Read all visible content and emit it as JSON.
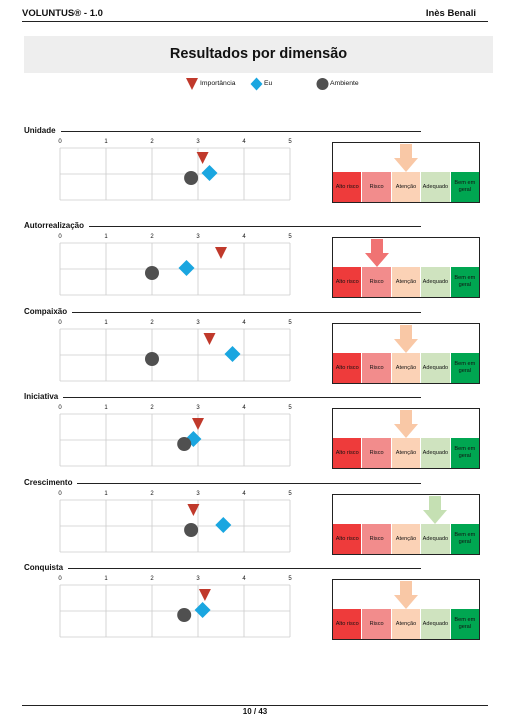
{
  "header": {
    "left": "VOLUNTUS® - 1.0",
    "right": "Inès Benali"
  },
  "title": "Resultados por dimensão",
  "legend": [
    {
      "label": "Importância",
      "marker": "triangle",
      "color": "#c0392b"
    },
    {
      "label": "Eu",
      "marker": "diamond",
      "color": "#1aa6e0"
    },
    {
      "label": "Ambiente",
      "marker": "circle",
      "color": "#505050"
    }
  ],
  "axis_ticks": [
    "0",
    "1",
    "2",
    "3",
    "4",
    "5"
  ],
  "risk_scale": {
    "bands": [
      "Alto risco",
      "Risco",
      "Atenção",
      "Adequado",
      "Bem em geral"
    ],
    "colors": [
      "#ee3b3b",
      "#f28c8c",
      "#fbd2b6",
      "#cfe3bf",
      "#00a651"
    ],
    "arrow_colors": [
      "#ee3b3b",
      "#f07373",
      "#f9c8a6",
      "#c5e0b3",
      "#00a651"
    ]
  },
  "chart_data": [
    {
      "type": "scatter",
      "title": "Unidade",
      "xlim": [
        0,
        5
      ],
      "series": [
        {
          "name": "Importância",
          "value": 3.1
        },
        {
          "name": "Eu",
          "value": 3.25
        },
        {
          "name": "Ambiente",
          "value": 2.85
        }
      ],
      "risk_level": "Atenção"
    },
    {
      "type": "scatter",
      "title": "Autorrealização",
      "xlim": [
        0,
        5
      ],
      "series": [
        {
          "name": "Importância",
          "value": 3.5
        },
        {
          "name": "Eu",
          "value": 2.75
        },
        {
          "name": "Ambiente",
          "value": 2.0
        }
      ],
      "risk_level": "Risco"
    },
    {
      "type": "scatter",
      "title": "Compaixão",
      "xlim": [
        0,
        5
      ],
      "series": [
        {
          "name": "Importância",
          "value": 3.25
        },
        {
          "name": "Eu",
          "value": 3.75
        },
        {
          "name": "Ambiente",
          "value": 2.0
        }
      ],
      "risk_level": "Atenção"
    },
    {
      "type": "scatter",
      "title": "Iniciativa",
      "xlim": [
        0,
        5
      ],
      "series": [
        {
          "name": "Importância",
          "value": 3.0
        },
        {
          "name": "Eu",
          "value": 2.9
        },
        {
          "name": "Ambiente",
          "value": 2.7
        }
      ],
      "risk_level": "Atenção"
    },
    {
      "type": "scatter",
      "title": "Crescimento",
      "xlim": [
        0,
        5
      ],
      "series": [
        {
          "name": "Importância",
          "value": 2.9
        },
        {
          "name": "Eu",
          "value": 3.55
        },
        {
          "name": "Ambiente",
          "value": 2.85
        }
      ],
      "risk_level": "Adequado"
    },
    {
      "type": "scatter",
      "title": "Conquista",
      "xlim": [
        0,
        5
      ],
      "series": [
        {
          "name": "Importância",
          "value": 3.15
        },
        {
          "name": "Eu",
          "value": 3.1
        },
        {
          "name": "Ambiente",
          "value": 2.7
        }
      ],
      "risk_level": "Atenção"
    }
  ],
  "footer": {
    "page": "10 / 43"
  }
}
